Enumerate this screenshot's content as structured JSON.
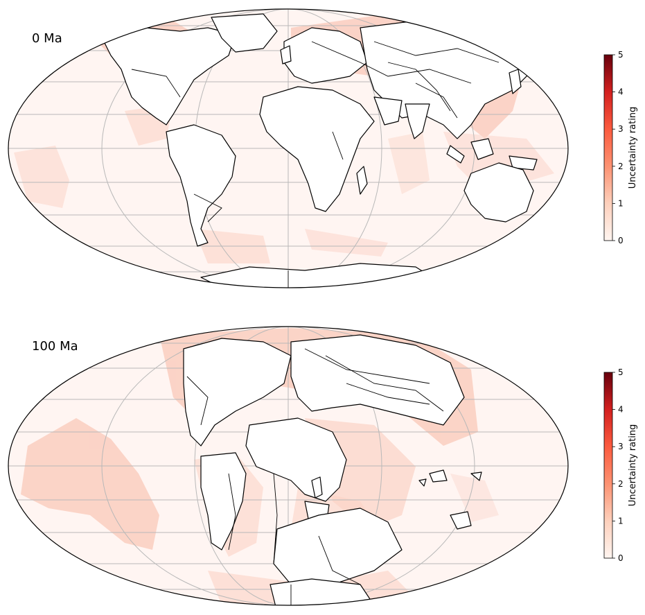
{
  "panels": [
    {
      "age_label": "0 Ma"
    },
    {
      "age_label": "100 Ma"
    }
  ],
  "colorbar": {
    "label": "Uncertainty rating",
    "ticks": [
      "0",
      "1",
      "2",
      "3",
      "4",
      "5"
    ],
    "min": 0,
    "max": 5,
    "colormap": "Reds"
  },
  "colors": {
    "land": "#ffffff",
    "ocean": "#fff5f2",
    "uncertainty_low": "#fcc8b8",
    "coastline": "#000000",
    "gridline": "#b0b0b0"
  },
  "projection": "mollweide"
}
